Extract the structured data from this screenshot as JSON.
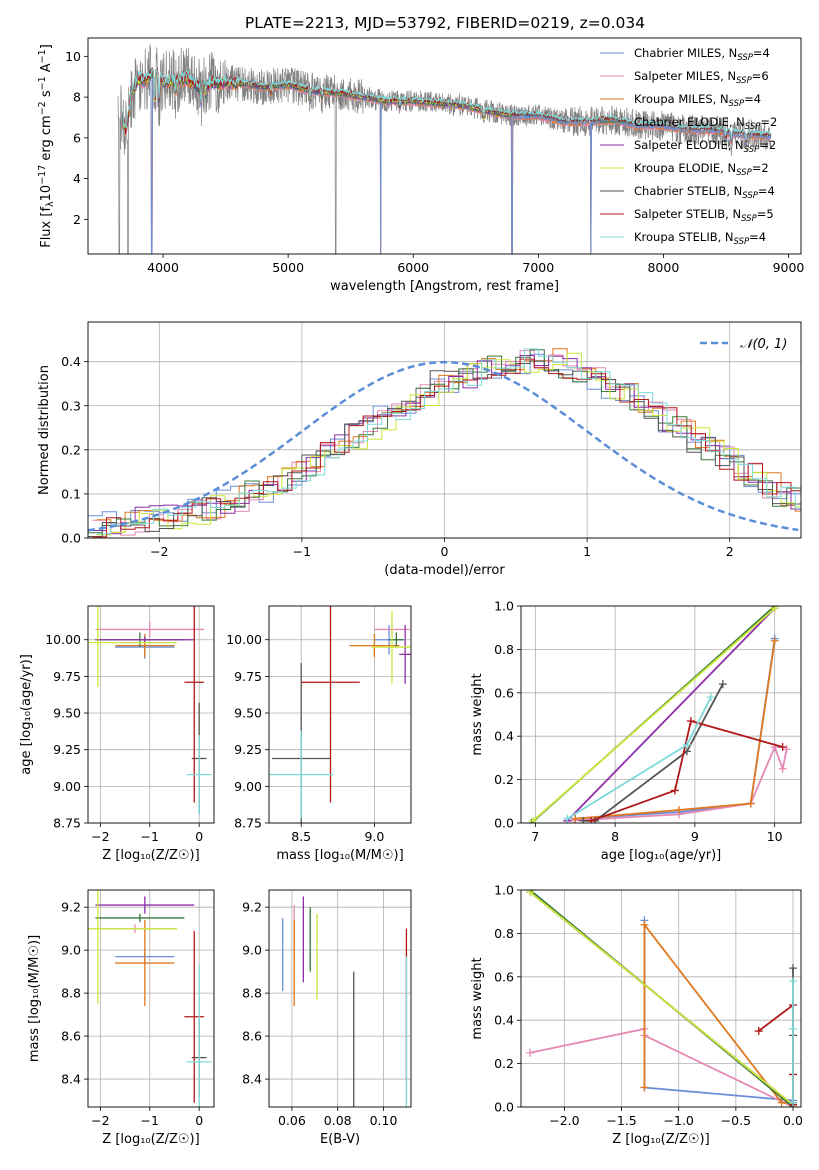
{
  "figure_title": "PLATE=2213, MJD=53792, FIBERID=0219, z=0.034",
  "colors": {
    "Chabrier MILES": "#6a8fd8",
    "Salpeter MILES": "#e68ab5",
    "Kroupa MILES": "#e07820",
    "Chabrier ELODIE": "#3a7a3a",
    "Salpeter ELODIE": "#8e2ea8",
    "Kroupa ELODIE": "#c9e83a",
    "Chabrier STELIB": "#555555",
    "Salpeter STELIB": "#b01818",
    "Kroupa STELIB": "#7fd8d8",
    "data": "#808080",
    "normal": "#5b8ed8"
  },
  "chart_data": [
    {
      "id": "spectrum",
      "type": "line",
      "title": "PLATE=2213, MJD=53792, FIBERID=0219, z=0.034",
      "xlabel": "wavelength [Angstrom, rest frame]",
      "ylabel_main": "Flux [f",
      "ylabel_sub": "λ",
      "ylabel_rest": "10",
      "ylabel_exp": "−17",
      "ylabel_tail": " erg cm",
      "ylabel_exp2": "−2",
      "ylabel_s": " s",
      "ylabel_exp3": "−1",
      "ylabel_end": " A",
      "ylabel_exp4": "−1",
      "ylabel_close": "]",
      "xlim": [
        3400,
        9100
      ],
      "ylim": [
        0.3,
        10.9
      ],
      "xticks": [
        4000,
        5000,
        6000,
        7000,
        8000,
        9000
      ],
      "yticks": [
        2,
        4,
        6,
        8,
        10
      ],
      "legend_position": "top-right",
      "legend": [
        {
          "name": "Chabrier MILES, N",
          "sub": "SSP",
          "tail": "=4"
        },
        {
          "name": "Salpeter MILES, N",
          "sub": "SSP",
          "tail": "=6"
        },
        {
          "name": "Kroupa MILES, N",
          "sub": "SSP",
          "tail": "=4"
        },
        {
          "name": "Chabrier ELODIE, N",
          "sub": "SSP",
          "tail": "=2"
        },
        {
          "name": "Salpeter ELODIE, N",
          "sub": "SSP",
          "tail": "=2"
        },
        {
          "name": "Kroupa ELODIE, N",
          "sub": "SSP",
          "tail": "=2"
        },
        {
          "name": "Chabrier STELIB, N",
          "sub": "SSP",
          "tail": "=4"
        },
        {
          "name": "Salpeter STELIB, N",
          "sub": "SSP",
          "tail": "=5"
        },
        {
          "name": "Kroupa STELIB, N",
          "sub": "SSP",
          "tail": "=4"
        }
      ],
      "model_continuum": {
        "x": [
          3680,
          3700,
          3750,
          3800,
          3850,
          3900,
          3950,
          4000,
          4100,
          4200,
          4300,
          4400,
          4600,
          4800,
          5000,
          5200,
          5400,
          5600,
          5800,
          6000,
          6200,
          6400,
          6600,
          6800,
          7000,
          7200,
          7400,
          7600,
          7800,
          8000,
          8200,
          8400,
          8600,
          8800,
          8860
        ],
        "y": [
          7.0,
          6.3,
          8.1,
          8.9,
          8.8,
          9.1,
          9.2,
          8.7,
          8.8,
          8.9,
          8.4,
          8.7,
          8.7,
          8.5,
          8.6,
          8.3,
          8.2,
          8.0,
          7.8,
          7.8,
          7.7,
          7.6,
          7.3,
          7.1,
          7.1,
          6.8,
          6.8,
          6.9,
          6.6,
          6.6,
          6.4,
          6.4,
          6.2,
          6.1,
          6.1
        ]
      },
      "absorption_features": [
        {
          "x": 3934,
          "depth": 1.6
        },
        {
          "x": 3969,
          "depth": 1.3
        },
        {
          "x": 4102,
          "depth": 0.5
        },
        {
          "x": 4304,
          "depth": 0.8
        },
        {
          "x": 4341,
          "depth": 0.4
        },
        {
          "x": 4861,
          "depth": 0.4
        },
        {
          "x": 5175,
          "depth": 0.5
        },
        {
          "x": 5270,
          "depth": 0.3
        },
        {
          "x": 5893,
          "depth": 0.4
        },
        {
          "x": 6563,
          "depth": 0.5
        },
        {
          "x": 8500,
          "depth": 0.4
        },
        {
          "x": 8542,
          "depth": 0.5
        },
        {
          "x": 8662,
          "depth": 0.5
        }
      ],
      "data_dropouts": [
        3650,
        3720,
        3910,
        5380,
        6790
      ],
      "model_dropouts": [
        3910,
        5740,
        6790,
        7420
      ]
    },
    {
      "id": "residuals",
      "type": "line",
      "xlabel": "(data-model)/error",
      "ylabel": "Normed distribution",
      "xlim": [
        -2.5,
        2.5
      ],
      "ylim": [
        0,
        0.49
      ],
      "xticks": [
        -2,
        -1,
        0,
        1,
        2
      ],
      "yticks": [
        0.0,
        0.1,
        0.2,
        0.3,
        0.4
      ],
      "legend": "𝒩(0, 1)",
      "legend_position": "top-right",
      "bin_width": 0.1,
      "series": [
        {
          "name": "Chabrier MILES",
          "x0": -2.5,
          "values": [
            0.025,
            0.03,
            0.035,
            0.04,
            0.045,
            0.05,
            0.055,
            0.06,
            0.07,
            0.08,
            0.09,
            0.1,
            0.11,
            0.13,
            0.15,
            0.17,
            0.19,
            0.21,
            0.23,
            0.25,
            0.27,
            0.29,
            0.31,
            0.33,
            0.35,
            0.36,
            0.37,
            0.38,
            0.39,
            0.4,
            0.4,
            0.41,
            0.4,
            0.39,
            0.37,
            0.36,
            0.34,
            0.33,
            0.31,
            0.29,
            0.27,
            0.25,
            0.22,
            0.2,
            0.18,
            0.16,
            0.14,
            0.12,
            0.1,
            0.09
          ]
        }
      ]
    },
    {
      "id": "age_vs_Z",
      "type": "scatter",
      "xlabel": "Z [log₁₀(Z/Z☉)]",
      "ylabel": "age  [log₁₀(age/yr)]",
      "xlim": [
        -2.25,
        0.3
      ],
      "ylim": [
        8.75,
        10.23
      ],
      "xticks": [
        -2,
        -1,
        0
      ],
      "yticks": [
        8.75,
        9.0,
        9.25,
        9.5,
        9.75,
        10.0
      ],
      "points": [
        {
          "series": "Chabrier MILES",
          "x": -1.1,
          "y": 9.95,
          "xerr": 0.6,
          "yerr": 0.08
        },
        {
          "series": "Salpeter MILES",
          "x": -1.0,
          "y": 10.07,
          "xerr": 1.1,
          "yerr": 0.05
        },
        {
          "series": "Kroupa MILES",
          "x": -1.1,
          "y": 9.96,
          "xerr": 0.6,
          "yerr": 0.08
        },
        {
          "series": "Chabrier ELODIE",
          "x": -1.2,
          "y": 10.0,
          "xerr": 0.9,
          "yerr": 0.05
        },
        {
          "series": "Salpeter ELODIE",
          "x": -1.1,
          "y": 10.0,
          "xerr": 1.0,
          "yerr": 0.02
        },
        {
          "series": "Kroupa ELODIE",
          "x": -2.05,
          "y": 9.98,
          "xerr": 1.6,
          "yerr": 0.3
        },
        {
          "series": "Chabrier STELIB",
          "x": 0.0,
          "y": 9.19,
          "xerr": 0.15,
          "yerr": 0.38
        },
        {
          "series": "Salpeter STELIB",
          "x": -0.1,
          "y": 9.71,
          "xerr": 0.2,
          "yerr": 0.82
        },
        {
          "series": "Kroupa STELIB",
          "x": 0.0,
          "y": 9.08,
          "xerr": 0.25,
          "yerr": 0.27
        }
      ]
    },
    {
      "id": "age_vs_mass",
      "type": "scatter",
      "xlabel": "mass [log₁₀(M/M☉)]",
      "ylabel": "",
      "xlim": [
        8.28,
        9.25
      ],
      "ylim": [
        8.75,
        10.23
      ],
      "xticks": [
        8.5,
        9.0
      ],
      "yticks": [
        8.75,
        9.0,
        9.25,
        9.5,
        9.75,
        10.0
      ],
      "points": [
        {
          "series": "Chabrier MILES",
          "x": 9.1,
          "y": 10.0,
          "xerr": 0.1,
          "yerr": 0.1
        },
        {
          "series": "Salpeter MILES",
          "x": 9.12,
          "y": 10.07,
          "xerr": 0.12,
          "yerr": 0.05
        },
        {
          "series": "Kroupa MILES",
          "x": 9.0,
          "y": 9.96,
          "xerr": 0.17,
          "yerr": 0.08
        },
        {
          "series": "Chabrier ELODIE",
          "x": 9.15,
          "y": 10.0,
          "xerr": 0.05,
          "yerr": 0.05
        },
        {
          "series": "Salpeter ELODIE",
          "x": 9.21,
          "y": 9.9,
          "xerr": 0.04,
          "yerr": 0.2
        },
        {
          "series": "Kroupa ELODIE",
          "x": 9.12,
          "y": 9.95,
          "xerr": 0.14,
          "yerr": 0.25
        },
        {
          "series": "Chabrier STELIB",
          "x": 8.5,
          "y": 9.19,
          "xerr": 0.2,
          "yerr": 0.65
        },
        {
          "series": "Salpeter STELIB",
          "x": 8.7,
          "y": 9.71,
          "xerr": 0.2,
          "yerr": 0.82
        },
        {
          "series": "Kroupa STELIB",
          "x": 8.5,
          "y": 9.08,
          "xerr": 0.22,
          "yerr": 0.3
        }
      ]
    },
    {
      "id": "mass_weight_vs_age",
      "type": "line",
      "xlabel": "age  [log₁₀(age/yr)]",
      "ylabel": "mass weight",
      "xlim": [
        6.82,
        10.33
      ],
      "ylim": [
        0.0,
        1.0
      ],
      "xticks": [
        7,
        8,
        9,
        10
      ],
      "yticks": [
        0.0,
        0.2,
        0.4,
        0.6,
        0.8,
        1.0
      ],
      "series": [
        {
          "name": "Chabrier MILES",
          "x": [
            7.5,
            8.8,
            9.7,
            10.0
          ],
          "y": [
            0.02,
            0.05,
            0.09,
            0.85
          ]
        },
        {
          "name": "Salpeter MILES",
          "x": [
            7.4,
            8.8,
            9.7,
            10.0,
            10.1,
            10.15
          ],
          "y": [
            0.01,
            0.04,
            0.09,
            0.35,
            0.25,
            0.34
          ]
        },
        {
          "name": "Kroupa MILES",
          "x": [
            7.5,
            8.8,
            9.7,
            10.0
          ],
          "y": [
            0.02,
            0.06,
            0.09,
            0.84
          ]
        },
        {
          "name": "Chabrier ELODIE",
          "x": [
            6.95,
            10.0
          ],
          "y": [
            0.0,
            1.0
          ]
        },
        {
          "name": "Salpeter ELODIE",
          "x": [
            7.4,
            10.0
          ],
          "y": [
            0.01,
            0.99
          ]
        },
        {
          "name": "Kroupa ELODIE",
          "x": [
            6.97,
            10.0
          ],
          "y": [
            0.01,
            0.99
          ]
        },
        {
          "name": "Chabrier STELIB",
          "x": [
            7.6,
            7.75,
            8.9,
            9.35
          ],
          "y": [
            0.01,
            0.01,
            0.33,
            0.64
          ]
        },
        {
          "name": "Salpeter STELIB",
          "x": [
            7.7,
            8.75,
            8.95,
            10.1
          ],
          "y": [
            0.01,
            0.15,
            0.47,
            0.35
          ]
        },
        {
          "name": "Kroupa STELIB",
          "x": [
            7.4,
            8.9,
            9.2
          ],
          "y": [
            0.02,
            0.36,
            0.58
          ]
        }
      ]
    },
    {
      "id": "mass_vs_Z",
      "type": "scatter",
      "xlabel": "Z [log₁₀(Z/Z☉)]",
      "ylabel": "mass [log₁₀(M/M☉)]",
      "xlim": [
        -2.25,
        0.3
      ],
      "ylim": [
        8.27,
        9.28
      ],
      "xticks": [
        -2,
        -1,
        0
      ],
      "yticks": [
        8.4,
        8.6,
        8.8,
        9.0,
        9.2
      ],
      "points": [
        {
          "series": "Chabrier MILES",
          "x": -1.1,
          "y": 8.97,
          "xerr": 0.6,
          "yerr": 0.04
        },
        {
          "series": "Salpeter MILES",
          "x": -1.3,
          "y": 9.1,
          "xerr": 0.8,
          "yerr": 0.02
        },
        {
          "series": "Kroupa MILES",
          "x": -1.1,
          "y": 8.94,
          "xerr": 0.6,
          "yerr": 0.2
        },
        {
          "series": "Chabrier ELODIE",
          "x": -1.2,
          "y": 9.15,
          "xerr": 0.9,
          "yerr": 0.02
        },
        {
          "series": "Salpeter ELODIE",
          "x": -1.1,
          "y": 9.21,
          "xerr": 1.0,
          "yerr": 0.04
        },
        {
          "series": "Kroupa ELODIE",
          "x": -2.05,
          "y": 9.1,
          "xerr": 1.6,
          "yerr": 0.35
        },
        {
          "series": "Chabrier STELIB",
          "x": 0.0,
          "y": 8.5,
          "xerr": 0.15,
          "yerr": 0.18
        },
        {
          "series": "Salpeter STELIB",
          "x": -0.1,
          "y": 8.69,
          "xerr": 0.2,
          "yerr": 0.4
        },
        {
          "series": "Kroupa STELIB",
          "x": 0.0,
          "y": 8.48,
          "xerr": 0.25,
          "yerr": 0.45
        }
      ]
    },
    {
      "id": "mass_vs_EBV",
      "type": "scatter",
      "xlabel": "E(B-V)",
      "ylabel": "",
      "xlim": [
        0.05,
        0.112
      ],
      "ylim": [
        8.27,
        9.28
      ],
      "xticks": [
        0.06,
        0.08,
        0.1
      ],
      "tick_labels": [
        "0.06",
        "0.08",
        "0.10"
      ],
      "yticks": [
        8.4,
        8.6,
        8.8,
        9.0,
        9.2
      ],
      "points": [
        {
          "series": "Chabrier MILES",
          "x": 0.056,
          "y": 8.98,
          "yerr": 0.17
        },
        {
          "series": "Salpeter MILES",
          "x": 0.061,
          "y": 9.08,
          "yerr": 0.13
        },
        {
          "series": "Kroupa MILES",
          "x": 0.061,
          "y": 8.94,
          "yerr": 0.2
        },
        {
          "series": "Chabrier ELODIE",
          "x": 0.068,
          "y": 9.05,
          "yerr": 0.15
        },
        {
          "series": "Salpeter ELODIE",
          "x": 0.065,
          "y": 9.05,
          "yerr": 0.2
        },
        {
          "series": "Kroupa ELODIE",
          "x": 0.071,
          "y": 8.97,
          "yerr": 0.2
        },
        {
          "series": "Chabrier STELIB",
          "x": 0.087,
          "y": 8.5,
          "yerr": 0.4
        },
        {
          "series": "Salpeter STELIB",
          "x": 0.11,
          "y": 8.75,
          "yerr": 0.35
        },
        {
          "series": "Kroupa STELIB",
          "x": 0.11,
          "y": 8.62,
          "yerr": 0.35
        }
      ]
    },
    {
      "id": "mass_weight_vs_Z",
      "type": "line",
      "xlabel": "Z [log₁₀(Z/Z☉)]",
      "ylabel": "mass weight",
      "xlim": [
        -2.38,
        0.07
      ],
      "ylim": [
        0.0,
        1.0
      ],
      "xticks": [
        -2.0,
        -1.5,
        -1.0,
        -0.5,
        0.0
      ],
      "yticks": [
        0.0,
        0.2,
        0.4,
        0.6,
        0.8,
        1.0
      ],
      "series": [
        {
          "name": "Chabrier MILES",
          "x": [
            -1.3,
            -1.3,
            0.0,
            0.0
          ],
          "y": [
            0.86,
            0.09,
            0.03,
            0.02
          ]
        },
        {
          "name": "Salpeter MILES",
          "x": [
            -2.3,
            -1.3,
            -1.3,
            0.0,
            0.0
          ],
          "y": [
            0.25,
            0.36,
            0.33,
            0.0,
            0.01
          ]
        },
        {
          "name": "Kroupa MILES",
          "x": [
            -1.3,
            -1.3,
            -0.1,
            0.0
          ],
          "y": [
            0.09,
            0.84,
            0.02,
            0.02
          ]
        },
        {
          "name": "Chabrier ELODIE",
          "x": [
            -2.3,
            0.0
          ],
          "y": [
            1.0,
            0.0
          ]
        },
        {
          "name": "Salpeter ELODIE",
          "x": [
            -2.3,
            0.0
          ],
          "y": [
            0.99,
            0.01
          ]
        },
        {
          "name": "Kroupa ELODIE",
          "x": [
            -2.3,
            0.0
          ],
          "y": [
            0.99,
            0.01
          ]
        },
        {
          "name": "Chabrier STELIB",
          "x": [
            0.0,
            0.0,
            0.0,
            0.0
          ],
          "y": [
            0.64,
            0.33,
            0.02,
            0.01
          ]
        },
        {
          "name": "Salpeter STELIB",
          "x": [
            -0.3,
            0.0,
            0.0,
            0.0
          ],
          "y": [
            0.35,
            0.47,
            0.15,
            0.01
          ]
        },
        {
          "name": "Kroupa STELIB",
          "x": [
            0.0,
            0.0,
            0.0
          ],
          "y": [
            0.02,
            0.36,
            0.58
          ]
        }
      ]
    }
  ]
}
